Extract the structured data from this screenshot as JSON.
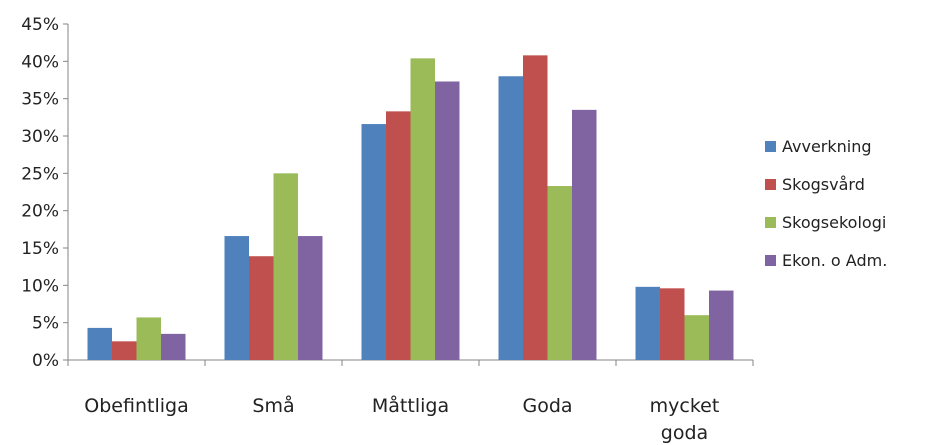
{
  "chart_data": {
    "type": "bar",
    "title": "",
    "xlabel": "",
    "ylabel": "",
    "categories": [
      "Obefintliga",
      "Små",
      "Måttliga",
      "Goda",
      "mycket goda"
    ],
    "category_lines": [
      [
        "Obefintliga"
      ],
      [
        "Små"
      ],
      [
        "Måttliga"
      ],
      [
        "Goda"
      ],
      [
        "mycket",
        "goda"
      ]
    ],
    "series": [
      {
        "name": "Avverkning",
        "color": "#4f81bd",
        "values": [
          4.3,
          16.6,
          31.6,
          38.0,
          9.8
        ]
      },
      {
        "name": "Skogsvård",
        "color": "#c0504d",
        "values": [
          2.5,
          13.9,
          33.3,
          40.8,
          9.6
        ]
      },
      {
        "name": "Skogsekologi",
        "color": "#9bbb59",
        "values": [
          5.7,
          25.0,
          40.4,
          23.3,
          6.0
        ]
      },
      {
        "name": "Ekon. o Adm.",
        "color": "#8064a2",
        "values": [
          3.5,
          16.6,
          37.3,
          33.5,
          9.3
        ]
      }
    ],
    "ylim": [
      0,
      45
    ],
    "yticks": [
      0,
      5,
      10,
      15,
      20,
      25,
      30,
      35,
      40,
      45
    ],
    "ytick_suffix": "%",
    "grid": false,
    "legend_position": "right"
  }
}
